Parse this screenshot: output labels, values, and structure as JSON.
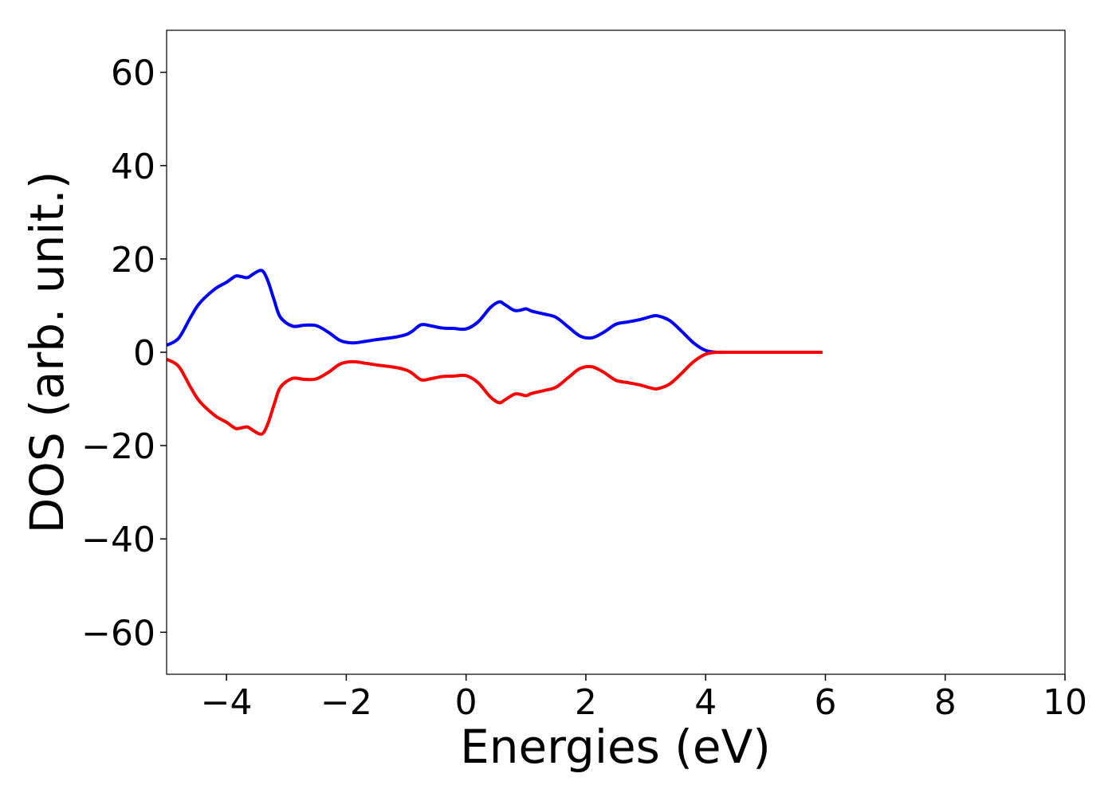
{
  "chart_data": {
    "type": "line",
    "title": "",
    "xlabel": "Energies (eV)",
    "ylabel": "DOS (arb. unit.)",
    "xlim": [
      -5,
      10
    ],
    "ylim": [
      -69,
      69
    ],
    "xticks": [
      -4,
      -2,
      0,
      2,
      4,
      6,
      8,
      10
    ],
    "yticks": [
      -60,
      -40,
      -20,
      0,
      20,
      40,
      60
    ],
    "xtick_labels": [
      "−4",
      "−2",
      "0",
      "2",
      "4",
      "6",
      "8",
      "10"
    ],
    "ytick_labels": [
      "−60",
      "−40",
      "−20",
      "0",
      "20",
      "40",
      "60"
    ],
    "grid": false,
    "legend": "none",
    "series": [
      {
        "color": "#0000ff",
        "x": [
          -5.0,
          -4.8,
          -4.6,
          -4.45,
          -4.2,
          -4.0,
          -3.85,
          -3.75,
          -3.65,
          -3.55,
          -3.45,
          -3.38,
          -3.3,
          -3.2,
          -3.1,
          -2.9,
          -2.7,
          -2.5,
          -2.3,
          -2.1,
          -1.9,
          -1.7,
          -1.5,
          -1.2,
          -1.0,
          -0.9,
          -0.75,
          -0.6,
          -0.4,
          -0.2,
          0.0,
          0.2,
          0.4,
          0.55,
          0.65,
          0.8,
          0.9,
          1.0,
          1.1,
          1.3,
          1.5,
          1.7,
          1.9,
          2.1,
          2.3,
          2.5,
          2.7,
          2.9,
          3.1,
          3.2,
          3.4,
          3.6,
          3.8,
          4.0,
          4.2,
          4.4,
          5.0,
          5.5,
          5.95
        ],
        "y": [
          1.5,
          3,
          7.5,
          10.5,
          13.5,
          15,
          16.3,
          16.2,
          16,
          16.8,
          17.5,
          17.2,
          15,
          11,
          7.5,
          5.6,
          5.8,
          5.7,
          4.3,
          2.5,
          2,
          2.3,
          2.7,
          3.2,
          3.8,
          4.5,
          5.9,
          5.7,
          5.2,
          5.1,
          5,
          6.5,
          9.5,
          10.8,
          10.2,
          9,
          9,
          9.3,
          8.8,
          8.2,
          7.5,
          5.5,
          3.5,
          3.1,
          4.3,
          6,
          6.5,
          7,
          7.7,
          7.8,
          6.8,
          4.5,
          2,
          0.4,
          0,
          0,
          0,
          0,
          0
        ]
      },
      {
        "color": "#ff0000",
        "x": [
          -5.0,
          -4.8,
          -4.6,
          -4.45,
          -4.2,
          -4.0,
          -3.85,
          -3.75,
          -3.65,
          -3.55,
          -3.45,
          -3.38,
          -3.3,
          -3.2,
          -3.1,
          -2.9,
          -2.7,
          -2.5,
          -2.3,
          -2.1,
          -1.9,
          -1.7,
          -1.5,
          -1.2,
          -1.0,
          -0.9,
          -0.75,
          -0.6,
          -0.4,
          -0.2,
          0.0,
          0.2,
          0.4,
          0.55,
          0.65,
          0.8,
          0.9,
          1.0,
          1.1,
          1.3,
          1.5,
          1.7,
          1.9,
          2.1,
          2.3,
          2.5,
          2.7,
          2.9,
          3.1,
          3.2,
          3.4,
          3.6,
          3.8,
          4.0,
          4.2,
          4.4,
          5.0,
          5.5,
          5.95
        ],
        "y": [
          -1.5,
          -3,
          -7.5,
          -10.5,
          -13.5,
          -15,
          -16.3,
          -16.2,
          -16,
          -16.8,
          -17.5,
          -17.2,
          -15,
          -11,
          -7.5,
          -5.6,
          -5.8,
          -5.7,
          -4.3,
          -2.5,
          -2,
          -2.3,
          -2.7,
          -3.2,
          -3.8,
          -4.5,
          -5.9,
          -5.7,
          -5.2,
          -5.1,
          -5,
          -6.5,
          -9.5,
          -10.8,
          -10.2,
          -9,
          -9,
          -9.3,
          -8.8,
          -8.2,
          -7.5,
          -5.5,
          -3.5,
          -3.1,
          -4.3,
          -6,
          -6.5,
          -7,
          -7.7,
          -7.8,
          -6.8,
          -4.5,
          -2,
          -0.4,
          0,
          0,
          0,
          0,
          0
        ]
      }
    ]
  }
}
